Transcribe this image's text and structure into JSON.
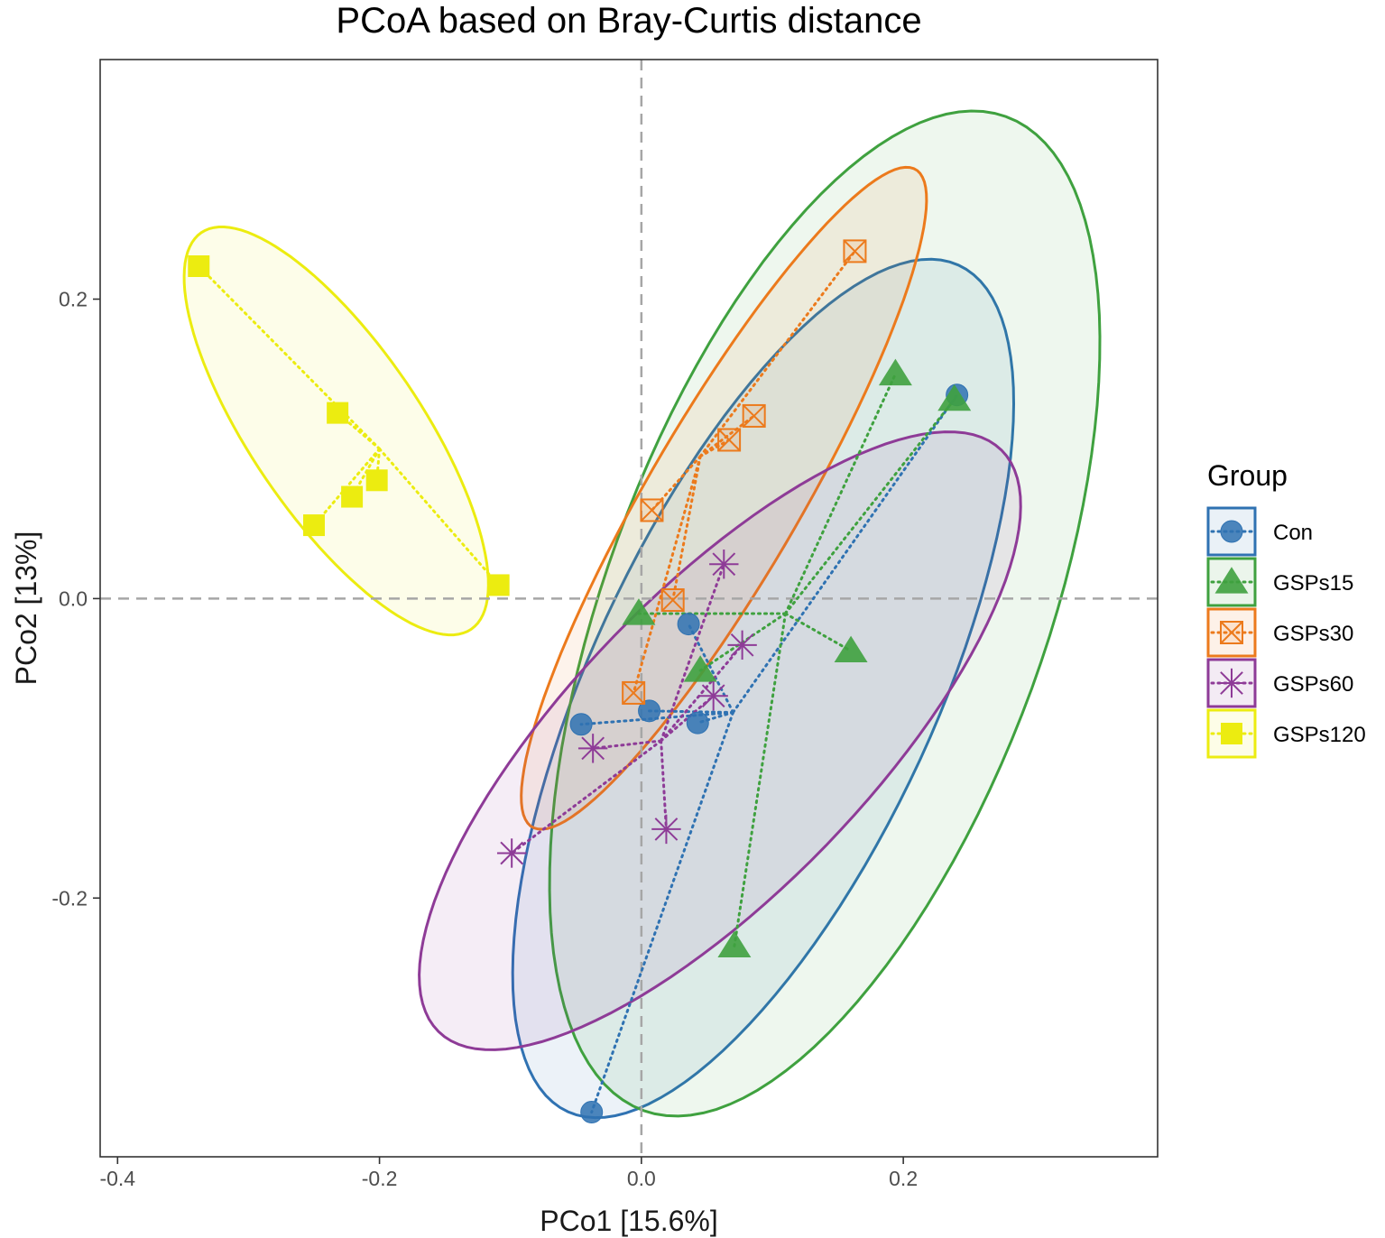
{
  "chart_data": {
    "type": "scatter",
    "title": "PCoA based on Bray-Curtis distance",
    "xlabel": "PCo1 [15.6%]",
    "ylabel": "PCo2 [13%]",
    "xlim": [
      -0.4133,
      0.3942
    ],
    "ylim": [
      -0.3728,
      0.36
    ],
    "x_ticks": [
      -0.4,
      -0.2,
      0.0,
      0.2
    ],
    "x_tick_labels": [
      "-0.4",
      "-0.2",
      "0.0",
      "0.2"
    ],
    "y_ticks": [
      -0.2,
      0.0,
      0.2
    ],
    "y_tick_labels": [
      "-0.2",
      "0.0",
      "0.2"
    ],
    "reference_lines": {
      "x": 0.0,
      "y": 0.0,
      "style": "dashed",
      "color": "#a6a6a6"
    },
    "legend": {
      "title": "Group",
      "position": "right"
    },
    "grid": false,
    "series": [
      {
        "name": "Con",
        "color": "#2f72b2",
        "marker": "circle",
        "centroid": [
          0.07,
          -0.076
        ],
        "ellipse": {
          "center": [
            0.093,
            -0.06
          ],
          "semi_major": 0.32,
          "semi_minor": 0.128,
          "angle_deg": 61
        },
        "points": [
          [
            0.241,
            0.136
          ],
          [
            0.036,
            -0.017
          ],
          [
            0.006,
            -0.075
          ],
          [
            -0.046,
            -0.084
          ],
          [
            0.043,
            -0.083
          ],
          [
            -0.038,
            -0.343
          ]
        ]
      },
      {
        "name": "GSPs15",
        "color": "#3fa13f",
        "marker": "triangle",
        "centroid": [
          0.11,
          -0.01
        ],
        "ellipse": {
          "center": [
            0.14,
            -0.01
          ],
          "semi_major": 0.36,
          "semi_minor": 0.165,
          "angle_deg": 66
        },
        "points": [
          [
            0.194,
            0.15
          ],
          [
            0.239,
            0.133
          ],
          [
            -0.002,
            -0.01
          ],
          [
            0.045,
            -0.048
          ],
          [
            0.16,
            -0.035
          ],
          [
            0.071,
            -0.232
          ]
        ]
      },
      {
        "name": "GSPs30",
        "color": "#ec7a1c",
        "marker": "square-x",
        "centroid": [
          0.045,
          0.095
        ],
        "ellipse": {
          "center": [
            0.063,
            0.067
          ],
          "semi_major": 0.264,
          "semi_minor": 0.056,
          "angle_deg": 56
        },
        "points": [
          [
            0.163,
            0.232
          ],
          [
            0.067,
            0.106
          ],
          [
            0.086,
            0.122
          ],
          [
            0.008,
            0.059
          ],
          [
            0.024,
            -0.001
          ],
          [
            -0.006,
            -0.063
          ]
        ]
      },
      {
        "name": "GSPs60",
        "color": "#8e3b97",
        "marker": "star",
        "centroid": [
          0.015,
          -0.095
        ],
        "ellipse": {
          "center": [
            0.06,
            -0.095
          ],
          "semi_major": 0.29,
          "semi_minor": 0.106,
          "angle_deg": 41
        },
        "points": [
          [
            0.063,
            0.023
          ],
          [
            0.077,
            -0.031
          ],
          [
            0.055,
            -0.065
          ],
          [
            -0.037,
            -0.1
          ],
          [
            0.019,
            -0.154
          ],
          [
            -0.099,
            -0.17
          ]
        ]
      },
      {
        "name": "GSPs120",
        "color": "#ecec10",
        "marker": "square",
        "centroid": [
          -0.2,
          0.1
        ],
        "ellipse": {
          "center": [
            -0.233,
            0.112
          ],
          "semi_major": 0.168,
          "semi_minor": 0.062,
          "angle_deg": -51
        },
        "points": [
          [
            -0.338,
            0.222
          ],
          [
            -0.232,
            0.124
          ],
          [
            -0.202,
            0.079
          ],
          [
            -0.221,
            0.068
          ],
          [
            -0.25,
            0.049
          ],
          [
            -0.109,
            0.009
          ]
        ]
      }
    ]
  }
}
